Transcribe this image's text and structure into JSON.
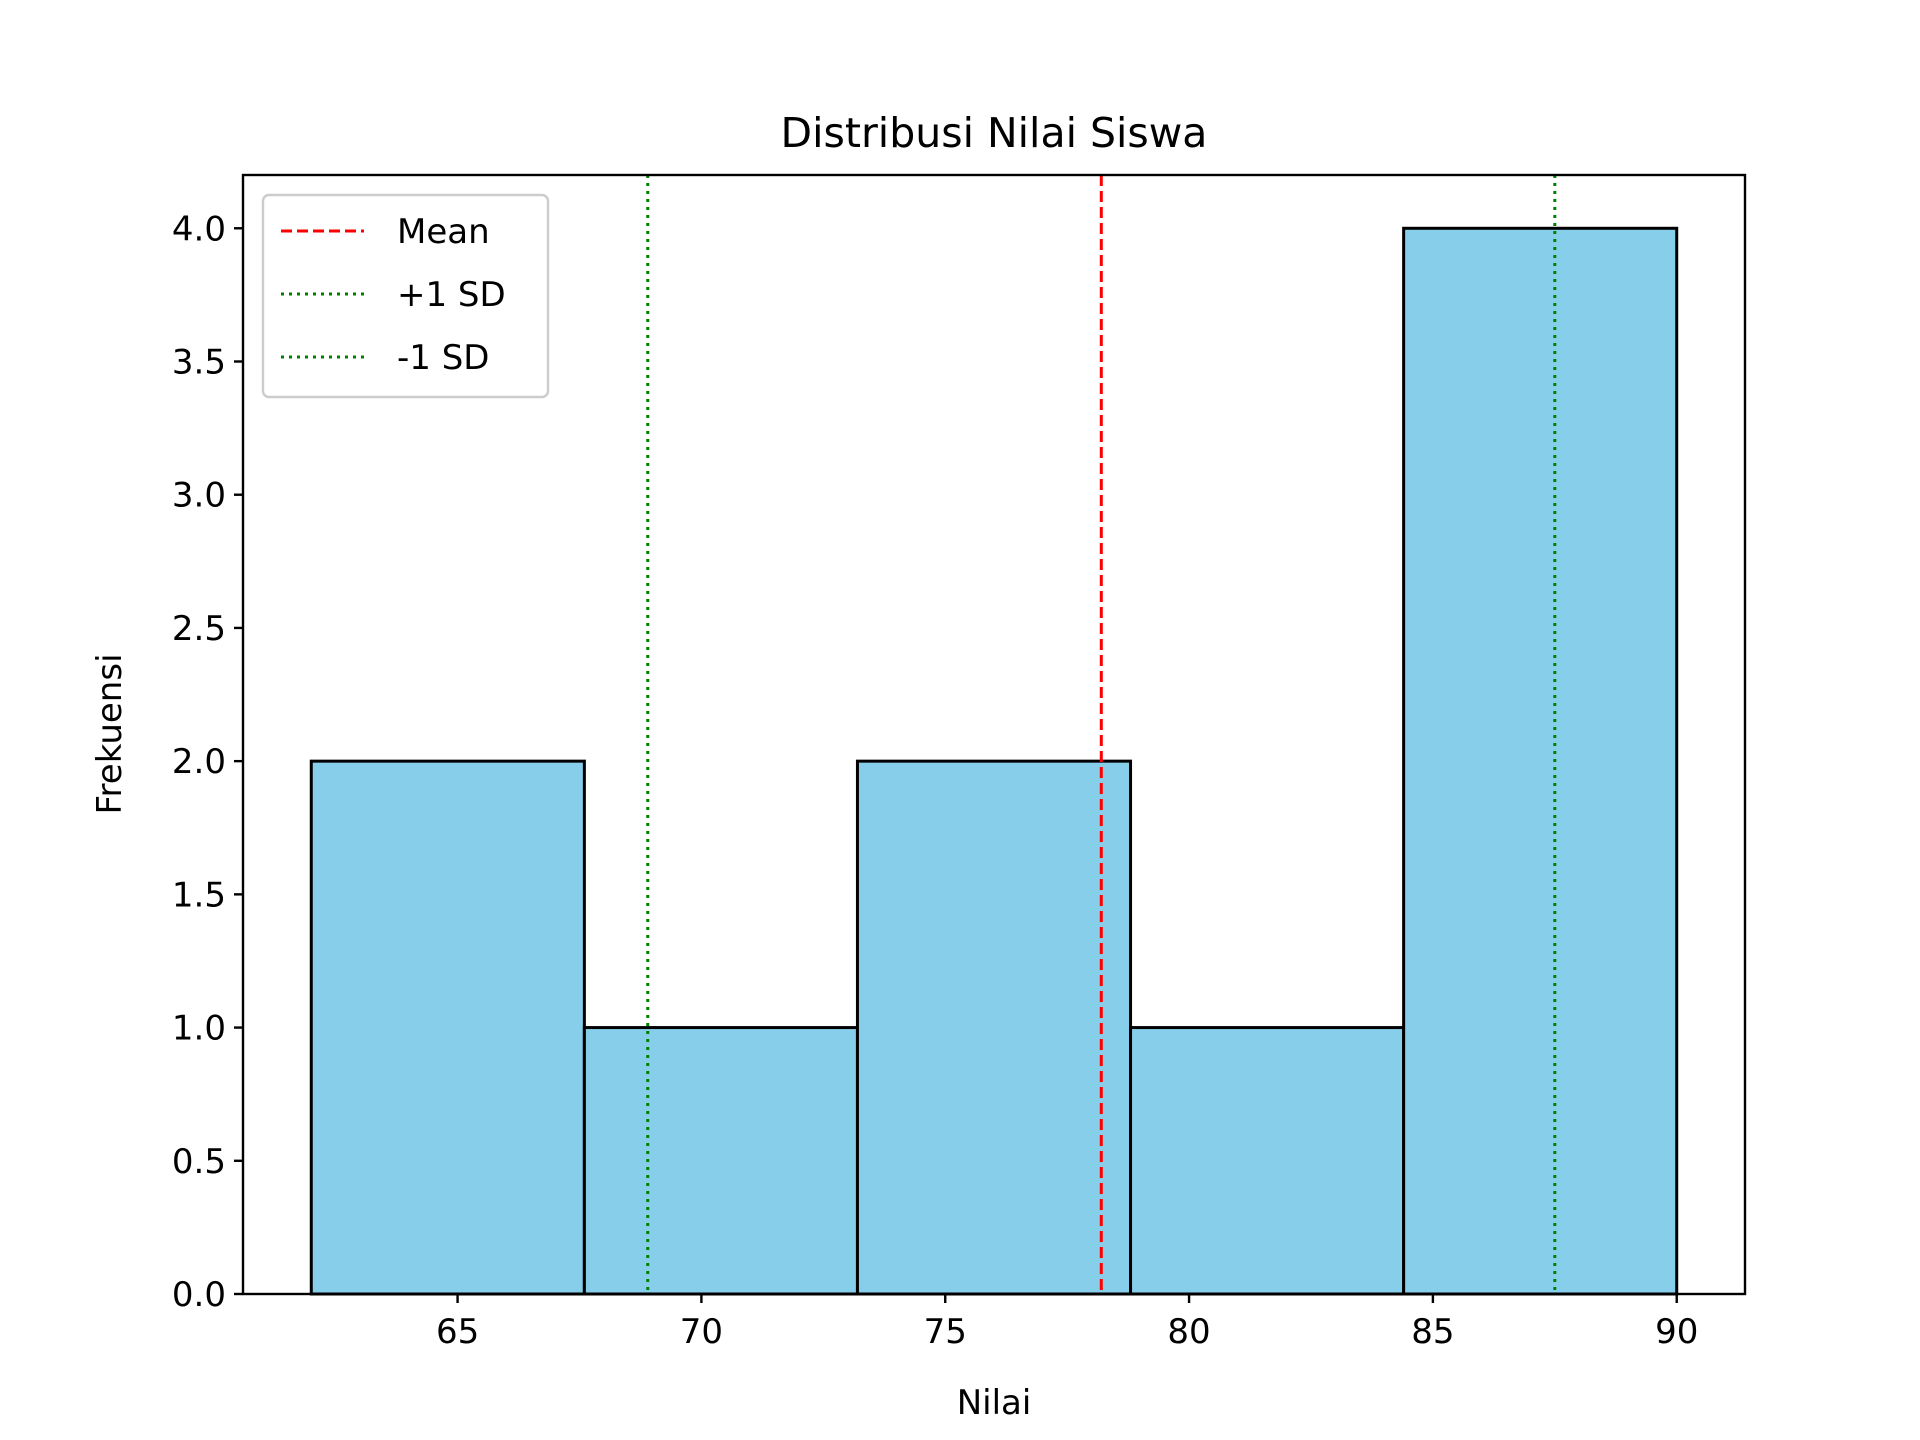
{
  "chart_data": {
    "type": "bar",
    "title": "Distribusi Nilai Siswa",
    "xlabel": "Nilai",
    "ylabel": "Frekuensi",
    "bins": [
      {
        "start": 62.0,
        "end": 67.6,
        "count": 2
      },
      {
        "start": 67.6,
        "end": 73.2,
        "count": 1
      },
      {
        "start": 73.2,
        "end": 78.8,
        "count": 2
      },
      {
        "start": 78.8,
        "end": 84.4,
        "count": 1
      },
      {
        "start": 84.4,
        "end": 90.0,
        "count": 4
      }
    ],
    "xlim": [
      60.6,
      91.4
    ],
    "ylim": [
      0,
      4.2
    ],
    "xticks": [
      65,
      70,
      75,
      80,
      85,
      90
    ],
    "xtick_labels": [
      "65",
      "70",
      "75",
      "80",
      "85",
      "90"
    ],
    "yticks": [
      0.0,
      0.5,
      1.0,
      1.5,
      2.0,
      2.5,
      3.0,
      3.5,
      4.0
    ],
    "ytick_labels": [
      "0.0",
      "0.5",
      "1.0",
      "1.5",
      "2.0",
      "2.5",
      "3.0",
      "3.5",
      "4.0"
    ],
    "reference_lines": [
      {
        "name": "Mean",
        "x": 78.2,
        "color": "#ff0000",
        "style": "dashed"
      },
      {
        "name": "+1 SD",
        "x": 87.5,
        "color": "#008000",
        "style": "dotted"
      },
      {
        "name": "-1 SD",
        "x": 68.9,
        "color": "#008000",
        "style": "dotted"
      }
    ],
    "bar_color": "#87ceeb",
    "edge_color": "#000000",
    "grid": false,
    "legend_position": "top-left"
  }
}
